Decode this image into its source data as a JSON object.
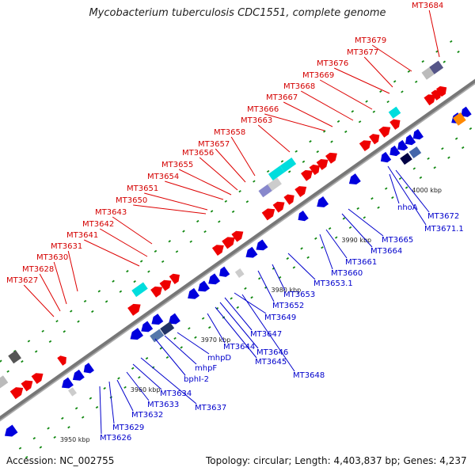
{
  "title": "Mycobacterium tuberculosis CDC1551, complete genome",
  "accession": "Accession: NC_002755",
  "summary": "Topology: circular; Length: 4,403,837 bp; Genes: 4,237",
  "colors": {
    "forward": "#ee0000",
    "reverse": "#0000dd",
    "backbone": "#777777",
    "tick": "#118811",
    "callout_forward": "#dd0000",
    "callout_reverse": "#0000cc"
  },
  "scale_labels": [
    "3950 kbp",
    "3960 kbp",
    "3970 kbp",
    "3980 kbp",
    "3990 kbp",
    "4000 kbp"
  ],
  "forward_labels": [
    "MT3684",
    "MT3679",
    "MT3677",
    "MT3676",
    "MT3669",
    "MT3668",
    "MT3667",
    "MT3666",
    "MT3663",
    "MT3658",
    "MT3657",
    "MT3656",
    "MT3655",
    "MT3654",
    "MT3651",
    "MT3650",
    "MT3643",
    "MT3642",
    "MT3641",
    "MT3631",
    "MT3630",
    "MT3628",
    "MT3627"
  ],
  "reverse_labels": [
    "MT3672",
    "MT3671.1",
    "nhoA",
    "MT3665",
    "MT3664",
    "MT3661",
    "MT3660",
    "MT3653.1",
    "MT3653",
    "MT3652",
    "MT3649",
    "MT3647",
    "MT3646",
    "MT3645",
    "MT3648",
    "MT3644",
    "mhpD",
    "mhpF",
    "bphI-2",
    "MT3637",
    "MT3634",
    "MT3633",
    "MT3632",
    "MT3629",
    "MT3626"
  ]
}
